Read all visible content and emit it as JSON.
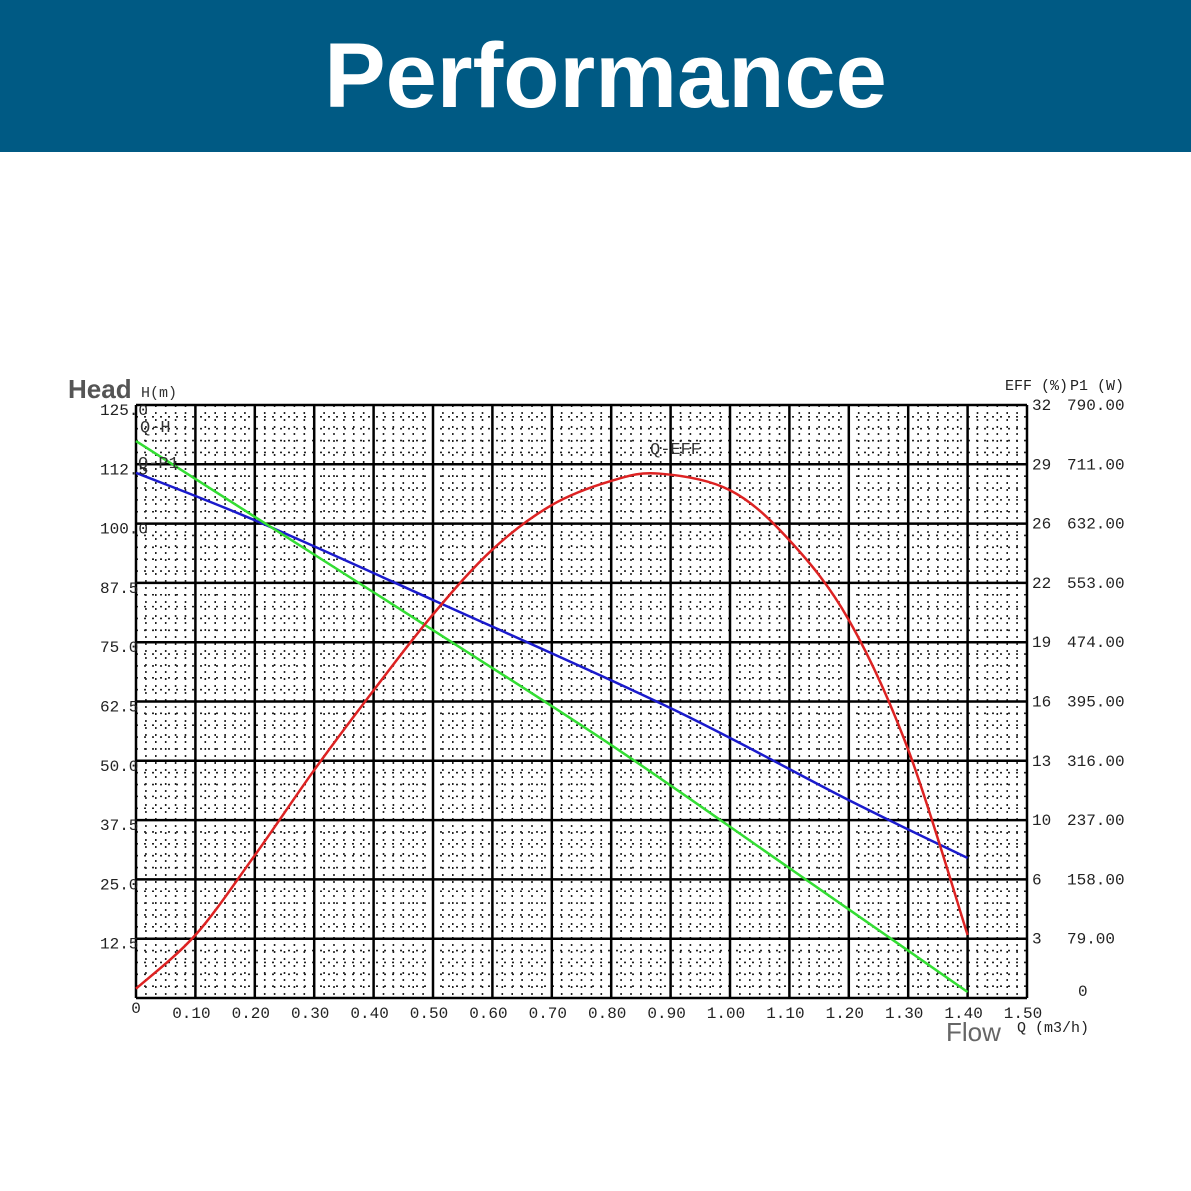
{
  "header": {
    "title": "Performance"
  },
  "chart_data": {
    "type": "line",
    "title": "Performance",
    "xlabel": "Flow",
    "xunit": "Q (m3/h)",
    "ylabel": "Head",
    "yunit": "H(m)",
    "y2label": "EFF (%)",
    "y3label": "P1 (W)",
    "xlim": [
      0,
      1.5
    ],
    "ylim": [
      0,
      125
    ],
    "y2lim": [
      0,
      32
    ],
    "y3lim": [
      0,
      790
    ],
    "grid": true,
    "x_ticks": [
      "0",
      "0.10",
      "0.20",
      "0.30",
      "0.40",
      "0.50",
      "0.60",
      "0.70",
      "0.80",
      "0.90",
      "1.00",
      "1.10",
      "1.20",
      "1.30",
      "1.40",
      "1.50"
    ],
    "y_ticks": [
      "125.0",
      "112.5",
      "100.0",
      "87.5",
      "75.0",
      "62.5",
      "50.0",
      "37.5",
      "25.0",
      "12.5"
    ],
    "y2_ticks": [
      "32",
      "29",
      "26",
      "22",
      "19",
      "16",
      "13",
      "10",
      "6",
      "3",
      "0"
    ],
    "y3_ticks": [
      "790.00",
      "711.00",
      "632.00",
      "553.00",
      "474.00",
      "395.00",
      "316.00",
      "237.00",
      "158.00",
      "79.00"
    ],
    "series": [
      {
        "name": "Q-H",
        "axis": "head",
        "color": "#1a1acc",
        "x": [
          0,
          0.2,
          0.5,
          0.9,
          1.2,
          1.4
        ],
        "values": [
          110.7,
          100.7,
          83.9,
          61.1,
          41.7,
          29.5
        ]
      },
      {
        "name": "Q-P1",
        "axis": "power",
        "color": "#33dd33",
        "x": [
          0,
          0.2,
          0.5,
          0.8,
          1.1,
          1.4
        ],
        "values": [
          742,
          641,
          490,
          337,
          173,
          8
        ]
      },
      {
        "name": "Q-EFF",
        "axis": "eff",
        "color": "#dd2222",
        "x": [
          0,
          0.1,
          0.2,
          0.3,
          0.4,
          0.5,
          0.6,
          0.7,
          0.8,
          0.88,
          1.0,
          1.1,
          1.2,
          1.3,
          1.4
        ],
        "values": [
          0.5,
          3.4,
          7.7,
          12.3,
          16.6,
          20.7,
          24.2,
          26.6,
          27.9,
          28.3,
          27.4,
          24.7,
          20.4,
          13.4,
          3.4
        ]
      }
    ]
  }
}
